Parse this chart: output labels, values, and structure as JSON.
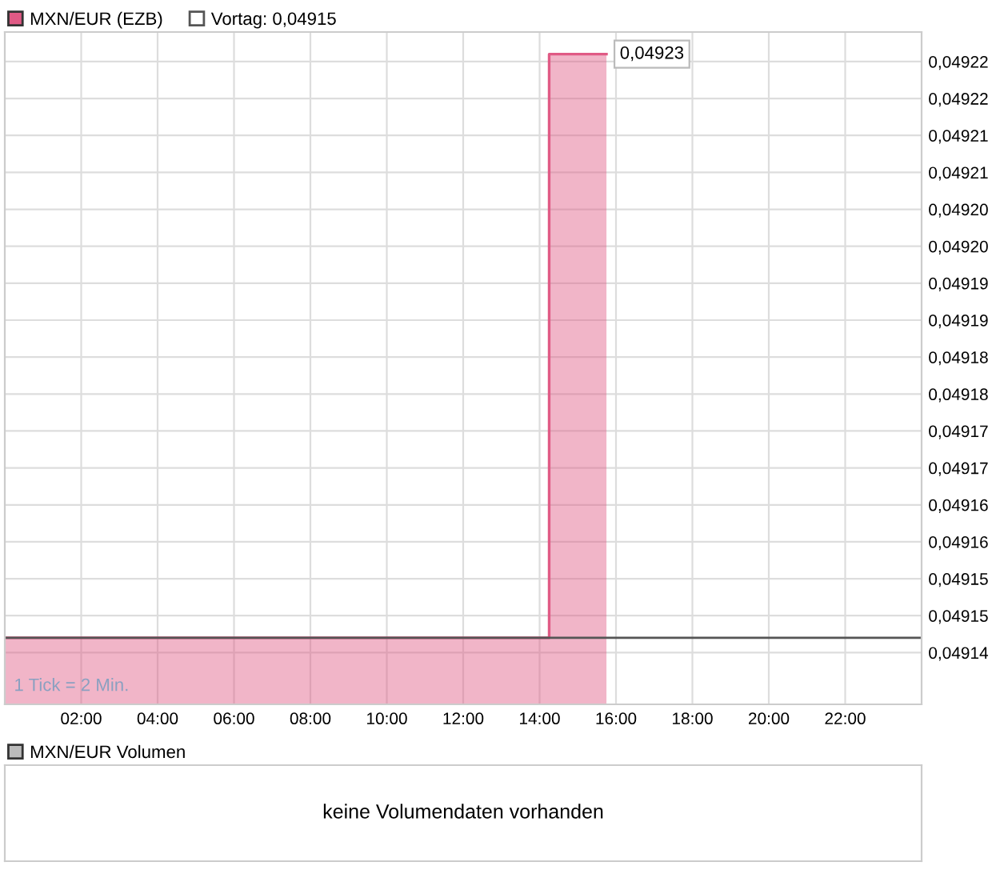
{
  "chart_data": [
    {
      "type": "area",
      "x": [
        0,
        14.25,
        14.25,
        15.75
      ],
      "xlim": [
        0,
        24
      ],
      "xticks": [
        {
          "value": 2,
          "label": "02:00"
        },
        {
          "value": 4,
          "label": "04:00"
        },
        {
          "value": 6,
          "label": "06:00"
        },
        {
          "value": 8,
          "label": "08:00"
        },
        {
          "value": 10,
          "label": "10:00"
        },
        {
          "value": 12,
          "label": "12:00"
        },
        {
          "value": 14,
          "label": "14:00"
        },
        {
          "value": 16,
          "label": "16:00"
        },
        {
          "value": 18,
          "label": "18:00"
        },
        {
          "value": 20,
          "label": "20:00"
        },
        {
          "value": 22,
          "label": "22:00"
        }
      ],
      "ylim": [
        0.049138,
        0.049229
      ],
      "yticks": [
        {
          "value": 0.049145,
          "label": "0,04914"
        },
        {
          "value": 0.04915,
          "label": "0,04915"
        },
        {
          "value": 0.049155,
          "label": "0,04915"
        },
        {
          "value": 0.04916,
          "label": "0,04916"
        },
        {
          "value": 0.049165,
          "label": "0,04916"
        },
        {
          "value": 0.04917,
          "label": "0,04917"
        },
        {
          "value": 0.049175,
          "label": "0,04917"
        },
        {
          "value": 0.04918,
          "label": "0,04918"
        },
        {
          "value": 0.049185,
          "label": "0,04918"
        },
        {
          "value": 0.04919,
          "label": "0,04919"
        },
        {
          "value": 0.049195,
          "label": "0,04919"
        },
        {
          "value": 0.0492,
          "label": "0,04920"
        },
        {
          "value": 0.049205,
          "label": "0,04920"
        },
        {
          "value": 0.04921,
          "label": "0,04921"
        },
        {
          "value": 0.049215,
          "label": "0,04921"
        },
        {
          "value": 0.04922,
          "label": "0,04922"
        },
        {
          "value": 0.049225,
          "label": "0,04922"
        }
      ],
      "series": [
        {
          "name": "MXN/EUR (EZB)",
          "color": "#e05a85",
          "values": [
            0.049147,
            0.049147,
            0.049226,
            0.049226
          ],
          "value_labels": [
            null,
            null,
            null,
            "0,04923"
          ]
        }
      ],
      "ref_lines": [
        {
          "axis": "y",
          "value": 0.049147,
          "label": "Vortag: 0,04915",
          "color": "#555555"
        }
      ],
      "annotations": [
        "1 Tick = 2 Min."
      ],
      "grid": true,
      "legend": "top left"
    },
    {
      "type": "other",
      "title": "MXN/EUR Volumen",
      "annotations": [
        "keine Volumendaten vorhanden"
      ]
    }
  ]
}
